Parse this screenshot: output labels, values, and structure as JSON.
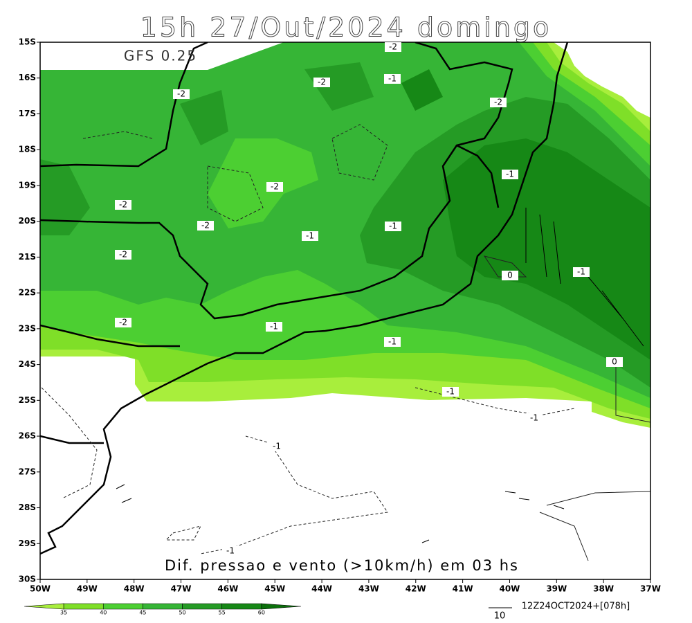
{
  "title": "15h 27/Out/2024 domingo",
  "model": "GFS 0.25",
  "lat_labels": [
    "15S",
    "16S",
    "17S",
    "18S",
    "19S",
    "20S",
    "21S",
    "22S",
    "23S",
    "24S",
    "25S",
    "26S",
    "27S",
    "28S",
    "29S",
    "30S"
  ],
  "lon_labels": [
    "50W",
    "49W",
    "48W",
    "47W",
    "46W",
    "45W",
    "44W",
    "43W",
    "42W",
    "41W",
    "40W",
    "39W",
    "38W",
    "37W"
  ],
  "contour_labels": [
    "-2",
    "-2",
    "-1",
    "-2",
    "-2",
    "-1",
    "-2",
    "-2",
    "-2",
    "-1",
    "-1",
    "-2",
    "0",
    "-1",
    "-2",
    "-1",
    "-1",
    "0",
    "-1",
    "-1",
    "-1",
    "-1"
  ],
  "caption": "Dif. pressao e vento (>10km/h) em 03 hs",
  "colorbar_labels": [
    "35",
    "40",
    "45",
    "50",
    "55",
    "60"
  ],
  "run_info": "12Z24OCT2024+[078h]",
  "vector_scale": "10"
}
